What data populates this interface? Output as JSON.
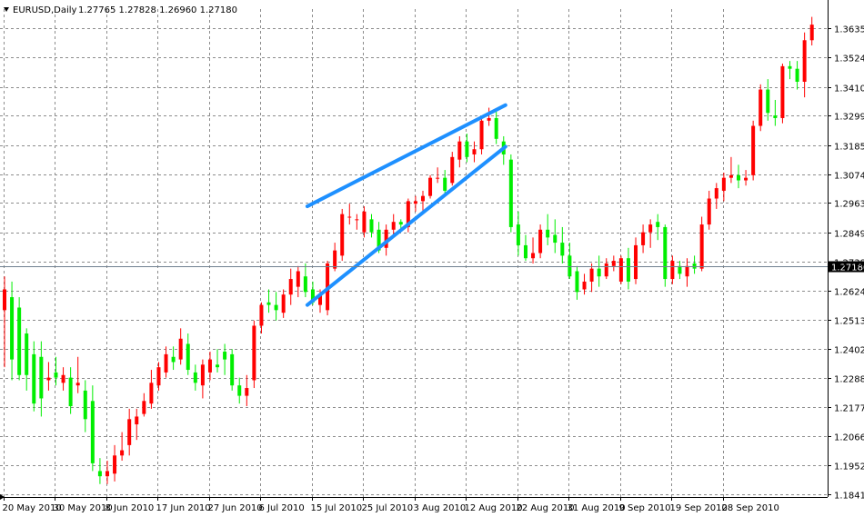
{
  "chart_data": {
    "type": "candlestick",
    "title": "EURUSD,Daily",
    "ohlc_header": "1.27765 1.27828 1.26960 1.27180",
    "current_price_label": "1.27180",
    "current_price": 1.2718,
    "ylim": [
      1.183,
      1.371
    ],
    "y_ticks": [
      {
        "label": "1.36350",
        "value": 1.3635
      },
      {
        "label": "1.35240",
        "value": 1.3524
      },
      {
        "label": "1.34100",
        "value": 1.341
      },
      {
        "label": "1.32990",
        "value": 1.3299
      },
      {
        "label": "1.31850",
        "value": 1.3185
      },
      {
        "label": "1.30740",
        "value": 1.3074
      },
      {
        "label": "1.29630",
        "value": 1.2963
      },
      {
        "label": "1.28490",
        "value": 1.2849
      },
      {
        "label": "1.27380",
        "value": 1.2738
      },
      {
        "label": "1.26240",
        "value": 1.2624
      },
      {
        "label": "1.25130",
        "value": 1.2513
      },
      {
        "label": "1.24020",
        "value": 1.2402
      },
      {
        "label": "1.22880",
        "value": 1.2288
      },
      {
        "label": "1.21770",
        "value": 1.2177
      },
      {
        "label": "1.20660",
        "value": 1.2066
      },
      {
        "label": "1.19520",
        "value": 1.1952
      },
      {
        "label": "1.18410",
        "value": 1.1841
      }
    ],
    "x_ticks": [
      {
        "label": "20 May 2010",
        "bar": 0
      },
      {
        "label": "30 May 2010",
        "bar": 7
      },
      {
        "label": "8 Jun 2010",
        "bar": 14
      },
      {
        "label": "17 Jun 2010",
        "bar": 21
      },
      {
        "label": "27 Jun 2010",
        "bar": 28
      },
      {
        "label": "6 Jul 2010",
        "bar": 35
      },
      {
        "label": "15 Jul 2010",
        "bar": 42
      },
      {
        "label": "25 Jul 2010",
        "bar": 49
      },
      {
        "label": "3 Aug 2010",
        "bar": 56
      },
      {
        "label": "12 Aug 2010",
        "bar": 63
      },
      {
        "label": "22 Aug 2010",
        "bar": 70
      },
      {
        "label": "31 Aug 2010",
        "bar": 77
      },
      {
        "label": "9 Sep 2010",
        "bar": 84
      },
      {
        "label": "19 Sep 2010",
        "bar": 91
      },
      {
        "label": "28 Sep 2010",
        "bar": 98
      }
    ],
    "colors": {
      "bull": "#ff0000",
      "bear": "#00ee00",
      "trendline": "#1e90ff",
      "grid": "#8c8c8c",
      "price_marker_bg": "#000000",
      "price_marker_text": "#ffffff",
      "price_line": "#708090"
    },
    "grid": true,
    "candles": [
      {
        "o": 1.255,
        "h": 1.268,
        "l": 1.233,
        "c": 1.263
      },
      {
        "o": 1.26,
        "h": 1.266,
        "l": 1.228,
        "c": 1.236
      },
      {
        "o": 1.256,
        "h": 1.26,
        "l": 1.228,
        "c": 1.23
      },
      {
        "o": 1.246,
        "h": 1.248,
        "l": 1.224,
        "c": 1.23
      },
      {
        "o": 1.238,
        "h": 1.243,
        "l": 1.216,
        "c": 1.219
      },
      {
        "o": 1.237,
        "h": 1.243,
        "l": 1.214,
        "c": 1.221
      },
      {
        "o": 1.228,
        "h": 1.235,
        "l": 1.224,
        "c": 1.229
      },
      {
        "o": 1.231,
        "h": 1.237,
        "l": 1.226,
        "c": 1.229
      },
      {
        "o": 1.227,
        "h": 1.233,
        "l": 1.224,
        "c": 1.23
      },
      {
        "o": 1.229,
        "h": 1.233,
        "l": 1.215,
        "c": 1.218
      },
      {
        "o": 1.226,
        "h": 1.237,
        "l": 1.223,
        "c": 1.227
      },
      {
        "o": 1.224,
        "h": 1.228,
        "l": 1.208,
        "c": 1.213
      },
      {
        "o": 1.22,
        "h": 1.226,
        "l": 1.193,
        "c": 1.196
      },
      {
        "o": 1.193,
        "h": 1.198,
        "l": 1.188,
        "c": 1.191
      },
      {
        "o": 1.191,
        "h": 1.197,
        "l": 1.188,
        "c": 1.193
      },
      {
        "o": 1.192,
        "h": 1.203,
        "l": 1.189,
        "c": 1.199
      },
      {
        "o": 1.199,
        "h": 1.208,
        "l": 1.197,
        "c": 1.201
      },
      {
        "o": 1.203,
        "h": 1.217,
        "l": 1.199,
        "c": 1.213
      },
      {
        "o": 1.211,
        "h": 1.217,
        "l": 1.205,
        "c": 1.214
      },
      {
        "o": 1.215,
        "h": 1.223,
        "l": 1.214,
        "c": 1.22
      },
      {
        "o": 1.219,
        "h": 1.232,
        "l": 1.217,
        "c": 1.227
      },
      {
        "o": 1.226,
        "h": 1.235,
        "l": 1.224,
        "c": 1.233
      },
      {
        "o": 1.231,
        "h": 1.241,
        "l": 1.229,
        "c": 1.238
      },
      {
        "o": 1.237,
        "h": 1.241,
        "l": 1.232,
        "c": 1.235
      },
      {
        "o": 1.236,
        "h": 1.248,
        "l": 1.234,
        "c": 1.244
      },
      {
        "o": 1.242,
        "h": 1.246,
        "l": 1.23,
        "c": 1.232
      },
      {
        "o": 1.231,
        "h": 1.234,
        "l": 1.224,
        "c": 1.227
      },
      {
        "o": 1.226,
        "h": 1.236,
        "l": 1.221,
        "c": 1.234
      },
      {
        "o": 1.231,
        "h": 1.239,
        "l": 1.228,
        "c": 1.236
      },
      {
        "o": 1.234,
        "h": 1.24,
        "l": 1.231,
        "c": 1.233
      },
      {
        "o": 1.239,
        "h": 1.242,
        "l": 1.23,
        "c": 1.236
      },
      {
        "o": 1.238,
        "h": 1.24,
        "l": 1.224,
        "c": 1.226
      },
      {
        "o": 1.226,
        "h": 1.229,
        "l": 1.219,
        "c": 1.222
      },
      {
        "o": 1.222,
        "h": 1.23,
        "l": 1.218,
        "c": 1.225
      },
      {
        "o": 1.228,
        "h": 1.251,
        "l": 1.225,
        "c": 1.249
      },
      {
        "o": 1.249,
        "h": 1.258,
        "l": 1.246,
        "c": 1.257
      },
      {
        "o": 1.258,
        "h": 1.263,
        "l": 1.254,
        "c": 1.257
      },
      {
        "o": 1.257,
        "h": 1.262,
        "l": 1.251,
        "c": 1.255
      },
      {
        "o": 1.254,
        "h": 1.263,
        "l": 1.252,
        "c": 1.261
      },
      {
        "o": 1.261,
        "h": 1.271,
        "l": 1.257,
        "c": 1.267
      },
      {
        "o": 1.264,
        "h": 1.272,
        "l": 1.26,
        "c": 1.27
      },
      {
        "o": 1.268,
        "h": 1.273,
        "l": 1.26,
        "c": 1.262
      },
      {
        "o": 1.263,
        "h": 1.266,
        "l": 1.257,
        "c": 1.258
      },
      {
        "o": 1.257,
        "h": 1.263,
        "l": 1.254,
        "c": 1.261
      },
      {
        "o": 1.255,
        "h": 1.274,
        "l": 1.253,
        "c": 1.273
      },
      {
        "o": 1.271,
        "h": 1.281,
        "l": 1.27,
        "c": 1.278
      },
      {
        "o": 1.276,
        "h": 1.294,
        "l": 1.274,
        "c": 1.292
      },
      {
        "o": 1.291,
        "h": 1.296,
        "l": 1.288,
        "c": 1.291
      },
      {
        "o": 1.29,
        "h": 1.292,
        "l": 1.286,
        "c": 1.29
      },
      {
        "o": 1.285,
        "h": 1.295,
        "l": 1.283,
        "c": 1.293
      },
      {
        "o": 1.29,
        "h": 1.292,
        "l": 1.283,
        "c": 1.285
      },
      {
        "o": 1.286,
        "h": 1.289,
        "l": 1.277,
        "c": 1.278
      },
      {
        "o": 1.279,
        "h": 1.288,
        "l": 1.276,
        "c": 1.286
      },
      {
        "o": 1.286,
        "h": 1.292,
        "l": 1.284,
        "c": 1.289
      },
      {
        "o": 1.289,
        "h": 1.29,
        "l": 1.286,
        "c": 1.288
      },
      {
        "o": 1.287,
        "h": 1.298,
        "l": 1.285,
        "c": 1.297
      },
      {
        "o": 1.296,
        "h": 1.299,
        "l": 1.293,
        "c": 1.297
      },
      {
        "o": 1.297,
        "h": 1.301,
        "l": 1.292,
        "c": 1.299
      },
      {
        "o": 1.299,
        "h": 1.307,
        "l": 1.298,
        "c": 1.306
      },
      {
        "o": 1.306,
        "h": 1.31,
        "l": 1.304,
        "c": 1.306
      },
      {
        "o": 1.306,
        "h": 1.309,
        "l": 1.3,
        "c": 1.301
      },
      {
        "o": 1.304,
        "h": 1.316,
        "l": 1.303,
        "c": 1.314
      },
      {
        "o": 1.313,
        "h": 1.322,
        "l": 1.31,
        "c": 1.32
      },
      {
        "o": 1.32,
        "h": 1.323,
        "l": 1.312,
        "c": 1.314
      },
      {
        "o": 1.315,
        "h": 1.32,
        "l": 1.312,
        "c": 1.317
      },
      {
        "o": 1.317,
        "h": 1.329,
        "l": 1.315,
        "c": 1.328
      },
      {
        "o": 1.328,
        "h": 1.333,
        "l": 1.326,
        "c": 1.329
      },
      {
        "o": 1.329,
        "h": 1.332,
        "l": 1.319,
        "c": 1.321
      },
      {
        "o": 1.32,
        "h": 1.322,
        "l": 1.311,
        "c": 1.315
      },
      {
        "o": 1.313,
        "h": 1.315,
        "l": 1.285,
        "c": 1.287
      },
      {
        "o": 1.288,
        "h": 1.293,
        "l": 1.276,
        "c": 1.28
      },
      {
        "o": 1.28,
        "h": 1.284,
        "l": 1.274,
        "c": 1.275
      },
      {
        "o": 1.275,
        "h": 1.283,
        "l": 1.273,
        "c": 1.277
      },
      {
        "o": 1.277,
        "h": 1.288,
        "l": 1.275,
        "c": 1.286
      },
      {
        "o": 1.286,
        "h": 1.292,
        "l": 1.28,
        "c": 1.283
      },
      {
        "o": 1.284,
        "h": 1.29,
        "l": 1.277,
        "c": 1.281
      },
      {
        "o": 1.281,
        "h": 1.287,
        "l": 1.273,
        "c": 1.276
      },
      {
        "o": 1.276,
        "h": 1.281,
        "l": 1.267,
        "c": 1.268
      },
      {
        "o": 1.27,
        "h": 1.272,
        "l": 1.259,
        "c": 1.262
      },
      {
        "o": 1.263,
        "h": 1.269,
        "l": 1.261,
        "c": 1.266
      },
      {
        "o": 1.266,
        "h": 1.273,
        "l": 1.262,
        "c": 1.271
      },
      {
        "o": 1.271,
        "h": 1.276,
        "l": 1.264,
        "c": 1.268
      },
      {
        "o": 1.268,
        "h": 1.275,
        "l": 1.267,
        "c": 1.273
      },
      {
        "o": 1.272,
        "h": 1.276,
        "l": 1.27,
        "c": 1.274
      },
      {
        "o": 1.266,
        "h": 1.276,
        "l": 1.265,
        "c": 1.275
      },
      {
        "o": 1.275,
        "h": 1.279,
        "l": 1.263,
        "c": 1.266
      },
      {
        "o": 1.267,
        "h": 1.283,
        "l": 1.265,
        "c": 1.28
      },
      {
        "o": 1.28,
        "h": 1.288,
        "l": 1.277,
        "c": 1.285
      },
      {
        "o": 1.285,
        "h": 1.29,
        "l": 1.279,
        "c": 1.288
      },
      {
        "o": 1.289,
        "h": 1.292,
        "l": 1.282,
        "c": 1.287
      },
      {
        "o": 1.287,
        "h": 1.288,
        "l": 1.264,
        "c": 1.267
      },
      {
        "o": 1.267,
        "h": 1.276,
        "l": 1.265,
        "c": 1.274
      },
      {
        "o": 1.272,
        "h": 1.274,
        "l": 1.267,
        "c": 1.269
      },
      {
        "o": 1.268,
        "h": 1.275,
        "l": 1.264,
        "c": 1.272
      },
      {
        "o": 1.273,
        "h": 1.276,
        "l": 1.269,
        "c": 1.271
      },
      {
        "o": 1.271,
        "h": 1.291,
        "l": 1.27,
        "c": 1.288
      },
      {
        "o": 1.288,
        "h": 1.301,
        "l": 1.286,
        "c": 1.298
      },
      {
        "o": 1.298,
        "h": 1.304,
        "l": 1.294,
        "c": 1.302
      },
      {
        "o": 1.301,
        "h": 1.308,
        "l": 1.297,
        "c": 1.306
      },
      {
        "o": 1.306,
        "h": 1.314,
        "l": 1.304,
        "c": 1.307
      },
      {
        "o": 1.307,
        "h": 1.311,
        "l": 1.302,
        "c": 1.305
      },
      {
        "o": 1.305,
        "h": 1.309,
        "l": 1.303,
        "c": 1.306
      },
      {
        "o": 1.307,
        "h": 1.328,
        "l": 1.305,
        "c": 1.326
      },
      {
        "o": 1.326,
        "h": 1.342,
        "l": 1.324,
        "c": 1.34
      },
      {
        "o": 1.34,
        "h": 1.344,
        "l": 1.328,
        "c": 1.331
      },
      {
        "o": 1.33,
        "h": 1.336,
        "l": 1.326,
        "c": 1.329
      },
      {
        "o": 1.329,
        "h": 1.35,
        "l": 1.327,
        "c": 1.349
      },
      {
        "o": 1.349,
        "h": 1.351,
        "l": 1.344,
        "c": 1.348
      },
      {
        "o": 1.348,
        "h": 1.351,
        "l": 1.34,
        "c": 1.343
      },
      {
        "o": 1.343,
        "h": 1.362,
        "l": 1.337,
        "c": 1.359
      },
      {
        "o": 1.359,
        "h": 1.368,
        "l": 1.357,
        "c": 1.365
      }
    ],
    "trendlines": [
      {
        "name": "upper-channel-line",
        "x1": 41.5,
        "y1": 1.295,
        "x2": 68.5,
        "y2": 1.334
      },
      {
        "name": "lower-channel-line",
        "x1": 41.5,
        "y1": 1.257,
        "x2": 68.5,
        "y2": 1.318
      }
    ]
  }
}
